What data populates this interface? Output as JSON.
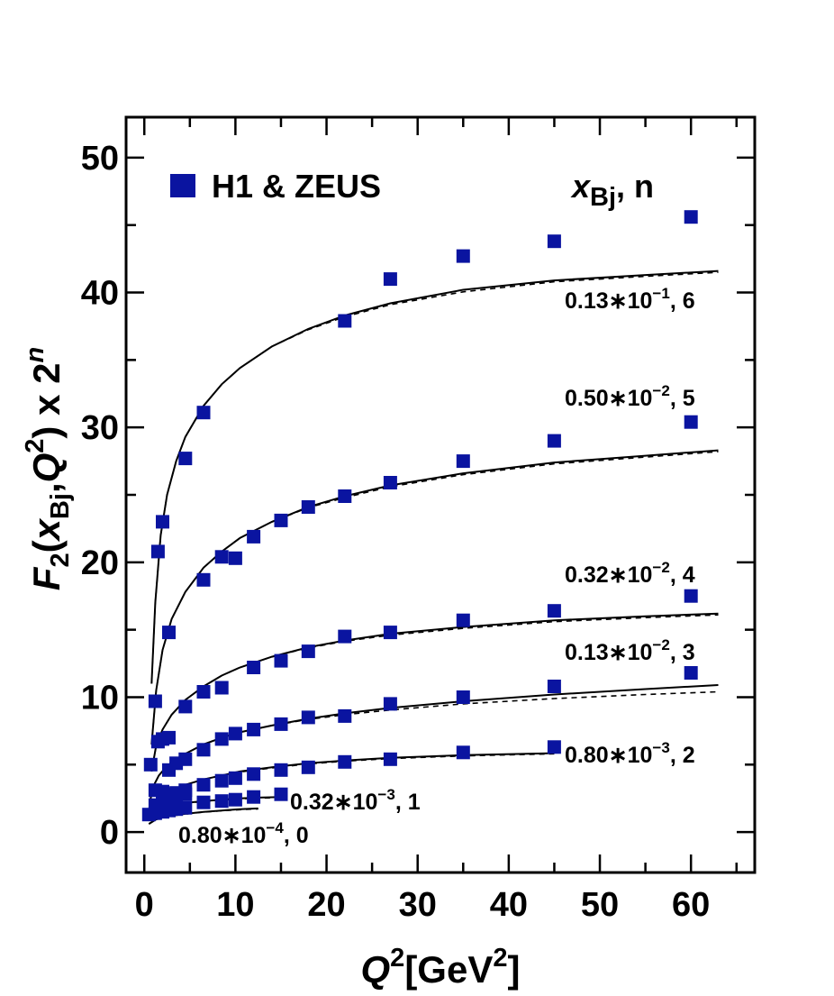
{
  "chart_data": {
    "type": "scatter",
    "xlabel": {
      "main": "Q",
      "sup": "2",
      "rest": "[GeV",
      "unit_sup": "2",
      "close": "]"
    },
    "ylabel": {
      "F": "F",
      "F_sub": "2",
      "open": "(",
      "x": "x",
      "x_sub": "Bj",
      "comma": ",",
      "Q": "Q",
      "Q_sup": "2",
      "tail": ") x 2",
      "n_sup": "n"
    },
    "xlim": [
      -2,
      67
    ],
    "ylim": [
      -3,
      53
    ],
    "x_ticks": [
      "0",
      "10",
      "20",
      "30",
      "40",
      "50",
      "60"
    ],
    "y_ticks": [
      "0",
      "10",
      "20",
      "30",
      "40",
      "50"
    ],
    "legend": {
      "marker_label": "H1 & ZEUS",
      "header_x": "x",
      "header_sub": "Bj",
      "header_tail": ", n",
      "marker_color": "#0a14a0",
      "position": "top-left"
    },
    "series": [
      {
        "label_main": "0.80∗10",
        "label_exp": "−4",
        "label_tail": ", 0",
        "points": [
          [
            0.5,
            1.3
          ],
          [
            1.2,
            1.4
          ],
          [
            2.0,
            1.5
          ],
          [
            2.7,
            1.6
          ],
          [
            3.5,
            1.7
          ],
          [
            4.5,
            1.8
          ]
        ],
        "model_solid": [
          [
            0.5,
            0.6
          ],
          [
            1.2,
            0.9
          ],
          [
            2.0,
            1.1
          ],
          [
            3.0,
            1.2
          ],
          [
            4.5,
            1.35
          ],
          [
            6.5,
            1.5
          ],
          [
            8.5,
            1.6
          ],
          [
            10.5,
            1.7
          ],
          [
            12.5,
            1.75
          ]
        ],
        "model_dashed": [
          [
            0.5,
            0.6
          ],
          [
            1.2,
            0.9
          ],
          [
            2.0,
            1.1
          ],
          [
            3.0,
            1.2
          ],
          [
            4.5,
            1.33
          ],
          [
            6.5,
            1.48
          ],
          [
            8.5,
            1.58
          ],
          [
            10.5,
            1.66
          ],
          [
            12.5,
            1.72
          ]
        ]
      },
      {
        "label_main": "0.32∗10",
        "label_exp": "−3",
        "label_tail": ", 1",
        "points": [
          [
            1.2,
            2.0
          ],
          [
            2.0,
            2.2
          ],
          [
            2.7,
            2.4
          ],
          [
            3.5,
            2.6
          ],
          [
            4.5,
            2.8
          ],
          [
            6.5,
            2.2
          ],
          [
            8.5,
            2.3
          ],
          [
            10.0,
            2.4
          ],
          [
            12.0,
            2.6
          ],
          [
            15.0,
            2.8
          ]
        ],
        "model_solid": [
          [
            0.5,
            1.2
          ],
          [
            1.2,
            1.6
          ],
          [
            2.0,
            1.8
          ],
          [
            3.0,
            2.0
          ],
          [
            4.5,
            2.15
          ],
          [
            6.5,
            2.3
          ],
          [
            8.5,
            2.4
          ],
          [
            10.5,
            2.5
          ],
          [
            12.5,
            2.55
          ],
          [
            15.0,
            2.6
          ]
        ],
        "model_dashed": [
          [
            0.5,
            1.2
          ],
          [
            1.2,
            1.6
          ],
          [
            2.0,
            1.8
          ],
          [
            3.0,
            2.0
          ],
          [
            4.5,
            2.13
          ],
          [
            6.5,
            2.27
          ],
          [
            8.5,
            2.37
          ],
          [
            10.5,
            2.46
          ],
          [
            12.5,
            2.51
          ],
          [
            15.0,
            2.55
          ]
        ]
      },
      {
        "label_main": "0.80∗10",
        "label_exp": "−3",
        "label_tail": ", 2",
        "points": [
          [
            1.2,
            3.1
          ],
          [
            2.0,
            3.0
          ],
          [
            2.7,
            2.8
          ],
          [
            3.5,
            2.9
          ],
          [
            4.5,
            3.1
          ],
          [
            6.5,
            3.5
          ],
          [
            8.5,
            3.8
          ],
          [
            10.0,
            4.0
          ],
          [
            12.0,
            4.3
          ],
          [
            15.0,
            4.6
          ],
          [
            18.0,
            4.8
          ],
          [
            22.0,
            5.2
          ],
          [
            27.0,
            5.4
          ],
          [
            35.0,
            5.9
          ],
          [
            45.0,
            6.3
          ]
        ],
        "model_solid": [
          [
            0.5,
            1.2
          ],
          [
            1.2,
            2.2
          ],
          [
            2.0,
            2.7
          ],
          [
            3.0,
            3.1
          ],
          [
            4.5,
            3.5
          ],
          [
            6.5,
            3.9
          ],
          [
            8.5,
            4.2
          ],
          [
            10.5,
            4.5
          ],
          [
            14.0,
            4.8
          ],
          [
            18.0,
            5.1
          ],
          [
            22.0,
            5.3
          ],
          [
            27.0,
            5.5
          ],
          [
            35.0,
            5.7
          ],
          [
            45.0,
            5.85
          ]
        ],
        "model_dashed": [
          [
            0.5,
            1.2
          ],
          [
            1.2,
            2.2
          ],
          [
            2.0,
            2.7
          ],
          [
            3.0,
            3.1
          ],
          [
            4.5,
            3.5
          ],
          [
            6.5,
            3.9
          ],
          [
            8.5,
            4.2
          ],
          [
            10.5,
            4.45
          ],
          [
            14.0,
            4.75
          ],
          [
            18.0,
            5.05
          ],
          [
            22.0,
            5.25
          ],
          [
            27.0,
            5.45
          ],
          [
            35.0,
            5.65
          ],
          [
            45.0,
            5.8
          ]
        ]
      },
      {
        "label_main": "0.13∗10",
        "label_exp": "−2",
        "label_tail": ", 3",
        "points": [
          [
            0.7,
            5.0
          ],
          [
            1.5,
            6.7
          ],
          [
            2.0,
            6.9
          ],
          [
            2.7,
            4.6
          ],
          [
            3.5,
            5.1
          ],
          [
            4.5,
            5.4
          ],
          [
            6.5,
            6.1
          ],
          [
            8.5,
            6.9
          ],
          [
            10.0,
            7.3
          ],
          [
            12.0,
            7.6
          ],
          [
            15.0,
            8.0
          ],
          [
            18.0,
            8.5
          ],
          [
            22.0,
            8.6
          ],
          [
            27.0,
            9.5
          ],
          [
            35.0,
            10.0
          ],
          [
            45.0,
            10.8
          ],
          [
            60.0,
            11.8
          ]
        ],
        "model_solid": [
          [
            0.6,
            2.2
          ],
          [
            1.0,
            3.4
          ],
          [
            1.6,
            4.2
          ],
          [
            2.5,
            4.9
          ],
          [
            3.5,
            5.4
          ],
          [
            4.5,
            5.8
          ],
          [
            6.5,
            6.5
          ],
          [
            8.5,
            7.0
          ],
          [
            10.5,
            7.4
          ],
          [
            14.0,
            7.9
          ],
          [
            18.0,
            8.4
          ],
          [
            22.0,
            8.8
          ],
          [
            27.0,
            9.2
          ],
          [
            35.0,
            9.7
          ],
          [
            45.0,
            10.2
          ],
          [
            55.0,
            10.6
          ],
          [
            63.0,
            10.9
          ]
        ],
        "model_dashed": [
          [
            0.6,
            2.2
          ],
          [
            1.0,
            3.4
          ],
          [
            1.6,
            4.2
          ],
          [
            2.5,
            4.9
          ],
          [
            3.5,
            5.4
          ],
          [
            4.5,
            5.8
          ],
          [
            6.5,
            6.5
          ],
          [
            8.5,
            7.0
          ],
          [
            10.5,
            7.4
          ],
          [
            14.0,
            7.9
          ],
          [
            18.0,
            8.35
          ],
          [
            22.0,
            8.7
          ],
          [
            27.0,
            9.05
          ],
          [
            35.0,
            9.5
          ],
          [
            45.0,
            9.9
          ],
          [
            55.0,
            10.2
          ],
          [
            63.0,
            10.4
          ]
        ]
      },
      {
        "label_main": "0.32∗10",
        "label_exp": "−2",
        "label_tail": ", 4",
        "points": [
          [
            1.2,
            9.7
          ],
          [
            2.7,
            7.0
          ],
          [
            4.5,
            9.3
          ],
          [
            6.5,
            10.4
          ],
          [
            8.5,
            10.7
          ],
          [
            12.0,
            12.2
          ],
          [
            15.0,
            12.7
          ],
          [
            18.0,
            13.4
          ],
          [
            22.0,
            14.5
          ],
          [
            27.0,
            14.8
          ],
          [
            35.0,
            15.7
          ],
          [
            45.0,
            16.4
          ],
          [
            60.0,
            17.5
          ]
        ],
        "model_solid": [
          [
            0.8,
            4.5
          ],
          [
            1.3,
            6.4
          ],
          [
            2.0,
            7.6
          ],
          [
            3.0,
            8.7
          ],
          [
            4.5,
            9.8
          ],
          [
            6.5,
            10.8
          ],
          [
            8.5,
            11.6
          ],
          [
            10.5,
            12.2
          ],
          [
            14.0,
            13.0
          ],
          [
            18.0,
            13.7
          ],
          [
            22.0,
            14.2
          ],
          [
            27.0,
            14.7
          ],
          [
            35.0,
            15.2
          ],
          [
            45.0,
            15.7
          ],
          [
            55.0,
            16.0
          ],
          [
            63.0,
            16.2
          ]
        ],
        "model_dashed": [
          [
            0.8,
            4.5
          ],
          [
            1.3,
            6.4
          ],
          [
            2.0,
            7.6
          ],
          [
            3.0,
            8.7
          ],
          [
            4.5,
            9.8
          ],
          [
            6.5,
            10.8
          ],
          [
            8.5,
            11.6
          ],
          [
            10.5,
            12.2
          ],
          [
            14.0,
            13.0
          ],
          [
            18.0,
            13.65
          ],
          [
            22.0,
            14.15
          ],
          [
            27.0,
            14.6
          ],
          [
            35.0,
            15.1
          ],
          [
            45.0,
            15.6
          ],
          [
            55.0,
            15.9
          ],
          [
            63.0,
            16.1
          ]
        ]
      },
      {
        "label_main": "0.50∗10",
        "label_exp": "−2",
        "label_tail": ", 5",
        "points": [
          [
            1.5,
            20.8
          ],
          [
            2.7,
            14.8
          ],
          [
            6.5,
            18.7
          ],
          [
            8.5,
            20.4
          ],
          [
            10.0,
            20.3
          ],
          [
            12.0,
            21.9
          ],
          [
            15.0,
            23.1
          ],
          [
            18.0,
            24.1
          ],
          [
            22.0,
            24.9
          ],
          [
            27.0,
            25.9
          ],
          [
            35.0,
            27.5
          ],
          [
            45.0,
            29.0
          ],
          [
            60.0,
            30.4
          ]
        ],
        "model_solid": [
          [
            0.8,
            6.5
          ],
          [
            1.3,
            10.5
          ],
          [
            2.0,
            13.5
          ],
          [
            3.0,
            15.8
          ],
          [
            4.5,
            17.8
          ],
          [
            6.5,
            19.6
          ],
          [
            8.5,
            20.8
          ],
          [
            10.5,
            21.8
          ],
          [
            14.0,
            23.0
          ],
          [
            18.0,
            24.1
          ],
          [
            22.0,
            24.9
          ],
          [
            27.0,
            25.7
          ],
          [
            35.0,
            26.6
          ],
          [
            45.0,
            27.4
          ],
          [
            55.0,
            27.9
          ],
          [
            63.0,
            28.3
          ]
        ],
        "model_dashed": [
          [
            0.8,
            6.5
          ],
          [
            1.3,
            10.5
          ],
          [
            2.0,
            13.5
          ],
          [
            3.0,
            15.8
          ],
          [
            4.5,
            17.8
          ],
          [
            6.5,
            19.6
          ],
          [
            8.5,
            20.8
          ],
          [
            10.5,
            21.8
          ],
          [
            14.0,
            23.0
          ],
          [
            18.0,
            24.05
          ],
          [
            22.0,
            24.8
          ],
          [
            27.0,
            25.6
          ],
          [
            35.0,
            26.5
          ],
          [
            45.0,
            27.3
          ],
          [
            55.0,
            27.8
          ],
          [
            63.0,
            28.2
          ]
        ]
      },
      {
        "label_main": "0.13∗10",
        "label_exp": "−1",
        "label_tail": ", 6",
        "points": [
          [
            2.0,
            23.0
          ],
          [
            4.5,
            27.7
          ],
          [
            6.5,
            31.1
          ],
          [
            22.0,
            37.9
          ],
          [
            27.0,
            41.0
          ],
          [
            35.0,
            42.7
          ],
          [
            45.0,
            43.8
          ],
          [
            60.0,
            45.6
          ]
        ],
        "model_solid": [
          [
            0.8,
            11.0
          ],
          [
            1.2,
            17.0
          ],
          [
            1.8,
            22.0
          ],
          [
            2.5,
            25.0
          ],
          [
            3.5,
            27.5
          ],
          [
            4.5,
            29.3
          ],
          [
            6.5,
            31.6
          ],
          [
            8.5,
            33.2
          ],
          [
            10.5,
            34.4
          ],
          [
            14.0,
            36.0
          ],
          [
            18.0,
            37.3
          ],
          [
            22.0,
            38.3
          ],
          [
            27.0,
            39.2
          ],
          [
            35.0,
            40.2
          ],
          [
            45.0,
            40.9
          ],
          [
            55.0,
            41.3
          ],
          [
            63.0,
            41.6
          ]
        ],
        "model_dashed": [
          [
            0.8,
            11.0
          ],
          [
            1.2,
            17.0
          ],
          [
            1.8,
            22.0
          ],
          [
            2.5,
            25.0
          ],
          [
            3.5,
            27.5
          ],
          [
            4.5,
            29.3
          ],
          [
            6.5,
            31.6
          ],
          [
            8.5,
            33.2
          ],
          [
            10.5,
            34.4
          ],
          [
            14.0,
            36.0
          ],
          [
            18.0,
            37.25
          ],
          [
            22.0,
            38.2
          ],
          [
            27.0,
            39.1
          ],
          [
            35.0,
            40.05
          ],
          [
            45.0,
            40.8
          ],
          [
            55.0,
            41.2
          ],
          [
            63.0,
            41.5
          ]
        ]
      }
    ],
    "colors": {
      "marker": "#0a14a0",
      "line": "#000000"
    },
    "grid": false
  }
}
